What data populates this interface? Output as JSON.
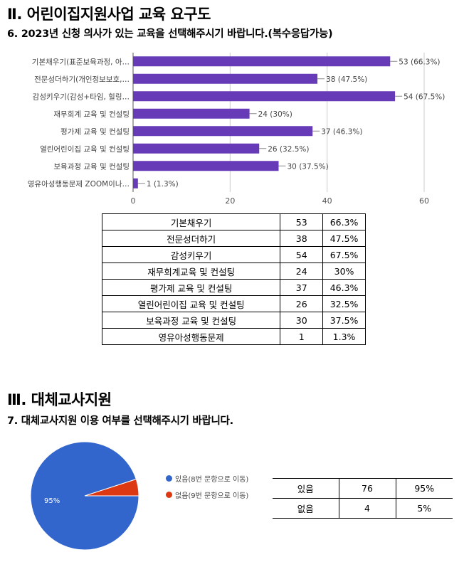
{
  "section2": {
    "title": "Ⅱ. 어린이집지원사업 교육 요구도",
    "question": "6. 2023년 신청 의사가 있는 교육을 선택해주시기 바랍니다.(복수응답가능)"
  },
  "chart_data": [
    {
      "type": "bar",
      "orientation": "horizontal",
      "categories": [
        "기본채우기(표준보육과정, 아…",
        "전문성더하기(개인정보보호,…",
        "감성키우기(감성+타임, 힐링…",
        "재무회계 교육 및 컨설팅",
        "평가제 교육 및 컨설팅",
        "열린어린이집 교육 및 컨설팅",
        "보육과정 교육 및 컨설팅",
        "영유아성행동문제 ZOOM이나…"
      ],
      "values": [
        53,
        38,
        54,
        24,
        37,
        26,
        30,
        1
      ],
      "data_labels": [
        "53 (66.3%)",
        "38 (47.5%)",
        "54 (67.5%)",
        "24 (30%)",
        "37 (46.3%)",
        "26 (32.5%)",
        "30 (37.5%)",
        "1 (1.3%)"
      ],
      "xticks": [
        "0",
        "20",
        "40",
        "60"
      ],
      "xlim": [
        0,
        60
      ],
      "grid": true,
      "colors": {
        "bar": "#673ab7"
      }
    },
    {
      "type": "pie",
      "labels": [
        "있음(8번 문항으로 이동)",
        "없음(9번 문항으로 이동)"
      ],
      "values": [
        76,
        4
      ],
      "slice_labels": [
        "95%",
        ""
      ],
      "colors": [
        "#3366cc",
        "#dc3912"
      ],
      "legend": "right"
    }
  ],
  "table1": {
    "rows": [
      [
        "기본채우기",
        "53",
        "66.3%"
      ],
      [
        "전문성더하기",
        "38",
        "47.5%"
      ],
      [
        "감성키우기",
        "54",
        "67.5%"
      ],
      [
        "재무회계교육 및 컨설팅",
        "24",
        "30%"
      ],
      [
        "평가제 교육 및 컨설팅",
        "37",
        "46.3%"
      ],
      [
        "열린어린이집 교육 및 컨설팅",
        "26",
        "32.5%"
      ],
      [
        "보육과정 교육 및 컨설팅",
        "30",
        "37.5%"
      ],
      [
        "영유아성행동문제",
        "1",
        "1.3%"
      ]
    ]
  },
  "section3": {
    "title": "Ⅲ. 대체교사지원",
    "question": "7. 대체교사지원 이용 여부를 선택해주시기 바랍니다."
  },
  "table2": {
    "rows": [
      [
        "있음",
        "76",
        "95%"
      ],
      [
        "없음",
        "4",
        "5%"
      ]
    ]
  }
}
